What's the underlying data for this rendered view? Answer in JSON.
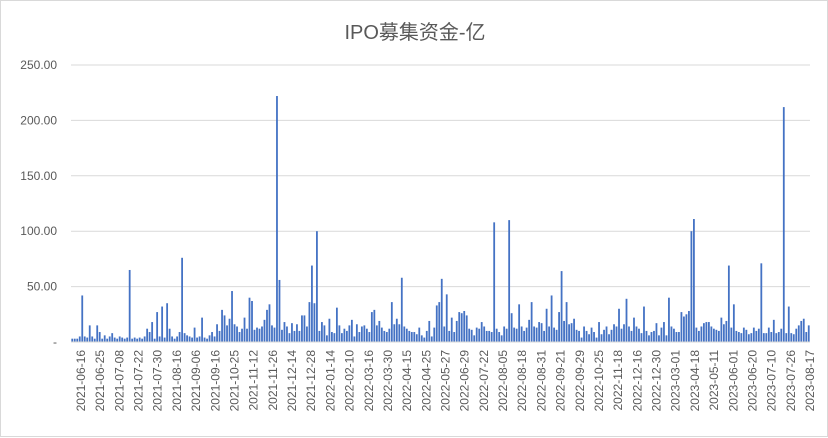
{
  "chart_data": {
    "type": "bar",
    "title": "IPO募集资金-亿",
    "xlabel": "",
    "ylabel": "",
    "ylim": [
      0,
      250
    ],
    "grid": "horizontal",
    "legend": "none",
    "bar_color": "#4472c4",
    "grid_color": "#d9d9d9",
    "y_ticks": [
      0,
      50,
      100,
      150,
      200,
      250
    ],
    "y_tick_labels": [
      "-",
      "50.00",
      "100.00",
      "150.00",
      "200.00",
      "250.00"
    ],
    "x_tick_labels": [
      "2021-06-16",
      "2021-06-25",
      "2021-07-08",
      "2021-07-22",
      "2021-07-30",
      "2021-08-16",
      "2021-09-06",
      "2021-09-16",
      "2021-10-25",
      "2021-11-12",
      "2021-11-26",
      "2021-12-14",
      "2021-12-28",
      "2022-01-14",
      "2022-02-10",
      "2022-03-16",
      "2022-03-30",
      "2022-04-15",
      "2022-04-25",
      "2022-05-27",
      "2022-06-29",
      "2022-07-22",
      "2022-08-05",
      "2022-08-18",
      "2022-08-31",
      "2022-09-21",
      "2022-09-29",
      "2022-10-25",
      "2022-11-18",
      "2022-12-16",
      "2022-12-30",
      "2023-03-01",
      "2023-04-18",
      "2023-05-11",
      "2023-06-01",
      "2023-06-20",
      "2023-07-10",
      "2023-07-26",
      "2023-08-17"
    ],
    "values": [
      3,
      3,
      3,
      5,
      42,
      5,
      4,
      15,
      5,
      3,
      15,
      9,
      3,
      6,
      3,
      5,
      8,
      4,
      3,
      5,
      4,
      3,
      4,
      65,
      3,
      4,
      3,
      4,
      3,
      5,
      12,
      9,
      18,
      3,
      27,
      5,
      32,
      4,
      35,
      12,
      5,
      3,
      5,
      9,
      76,
      8,
      6,
      5,
      4,
      13,
      4,
      5,
      22,
      4,
      3,
      6,
      9,
      5,
      16,
      10,
      29,
      24,
      15,
      21,
      46,
      16,
      14,
      9,
      12,
      22,
      12,
      40,
      37,
      11,
      13,
      12,
      14,
      20,
      29,
      34,
      15,
      13,
      222,
      56,
      11,
      18,
      14,
      8,
      17,
      10,
      16,
      10,
      24,
      24,
      14,
      36,
      69,
      35,
      100,
      10,
      18,
      15,
      6,
      21,
      9,
      8,
      31,
      15,
      8,
      12,
      10,
      15,
      20,
      5,
      16,
      9,
      14,
      15,
      12,
      9,
      27,
      29,
      15,
      19,
      13,
      10,
      9,
      12,
      36,
      16,
      21,
      16,
      58,
      14,
      12,
      10,
      9,
      9,
      7,
      13,
      6,
      4,
      10,
      19,
      5,
      13,
      33,
      36,
      57,
      14,
      43,
      10,
      22,
      9,
      19,
      27,
      26,
      28,
      24,
      12,
      11,
      6,
      13,
      12,
      18,
      14,
      10,
      10,
      9,
      108,
      12,
      9,
      6,
      14,
      12,
      110,
      26,
      13,
      12,
      34,
      14,
      10,
      13,
      20,
      36,
      14,
      13,
      18,
      17,
      10,
      30,
      14,
      42,
      13,
      11,
      27,
      64,
      19,
      36,
      16,
      17,
      21,
      11,
      10,
      4,
      14,
      10,
      7,
      13,
      9,
      4,
      18,
      7,
      11,
      14,
      7,
      11,
      16,
      14,
      30,
      12,
      16,
      39,
      14,
      10,
      22,
      14,
      12,
      8,
      32,
      10,
      6,
      9,
      10,
      17,
      6,
      13,
      18,
      6,
      40,
      14,
      12,
      9,
      9,
      27,
      23,
      25,
      28,
      100,
      111,
      13,
      10,
      14,
      17,
      18,
      18,
      14,
      12,
      11,
      10,
      22,
      16,
      19,
      69,
      13,
      34,
      10,
      9,
      8,
      13,
      11,
      7,
      8,
      13,
      10,
      12,
      71,
      8,
      8,
      13,
      9,
      20,
      8,
      9,
      12,
      212,
      8,
      32,
      8,
      7,
      12,
      15,
      19,
      21,
      9,
      15
    ]
  }
}
